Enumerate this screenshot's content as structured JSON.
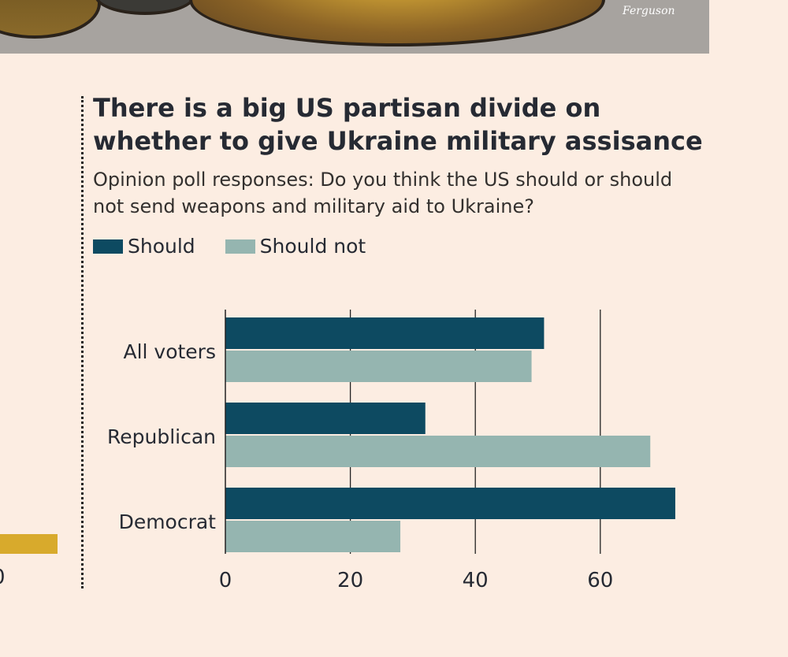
{
  "cartoon": {
    "signature": "Ferguson"
  },
  "left_partial": {
    "tick": "0"
  },
  "chart_data": {
    "type": "bar",
    "orientation": "horizontal",
    "title": "There is a big US partisan divide on whether to give Ukraine military assisance",
    "subtitle": "Opinion poll responses: Do you think the US should or should not send weapons and military aid to Ukraine?",
    "categories": [
      "All voters",
      "Republican",
      "Democrat"
    ],
    "series": [
      {
        "name": "Should",
        "color": "#0d4a61",
        "values": [
          51,
          32,
          72
        ]
      },
      {
        "name": "Should not",
        "color": "#95b5b0",
        "values": [
          49,
          68,
          28
        ]
      }
    ],
    "xlim": [
      0,
      75
    ],
    "xticks": [
      0,
      20,
      40,
      60
    ],
    "xtick_labels": [
      "0",
      "20",
      "40",
      "60"
    ],
    "grid": true,
    "legend": "top-left"
  }
}
